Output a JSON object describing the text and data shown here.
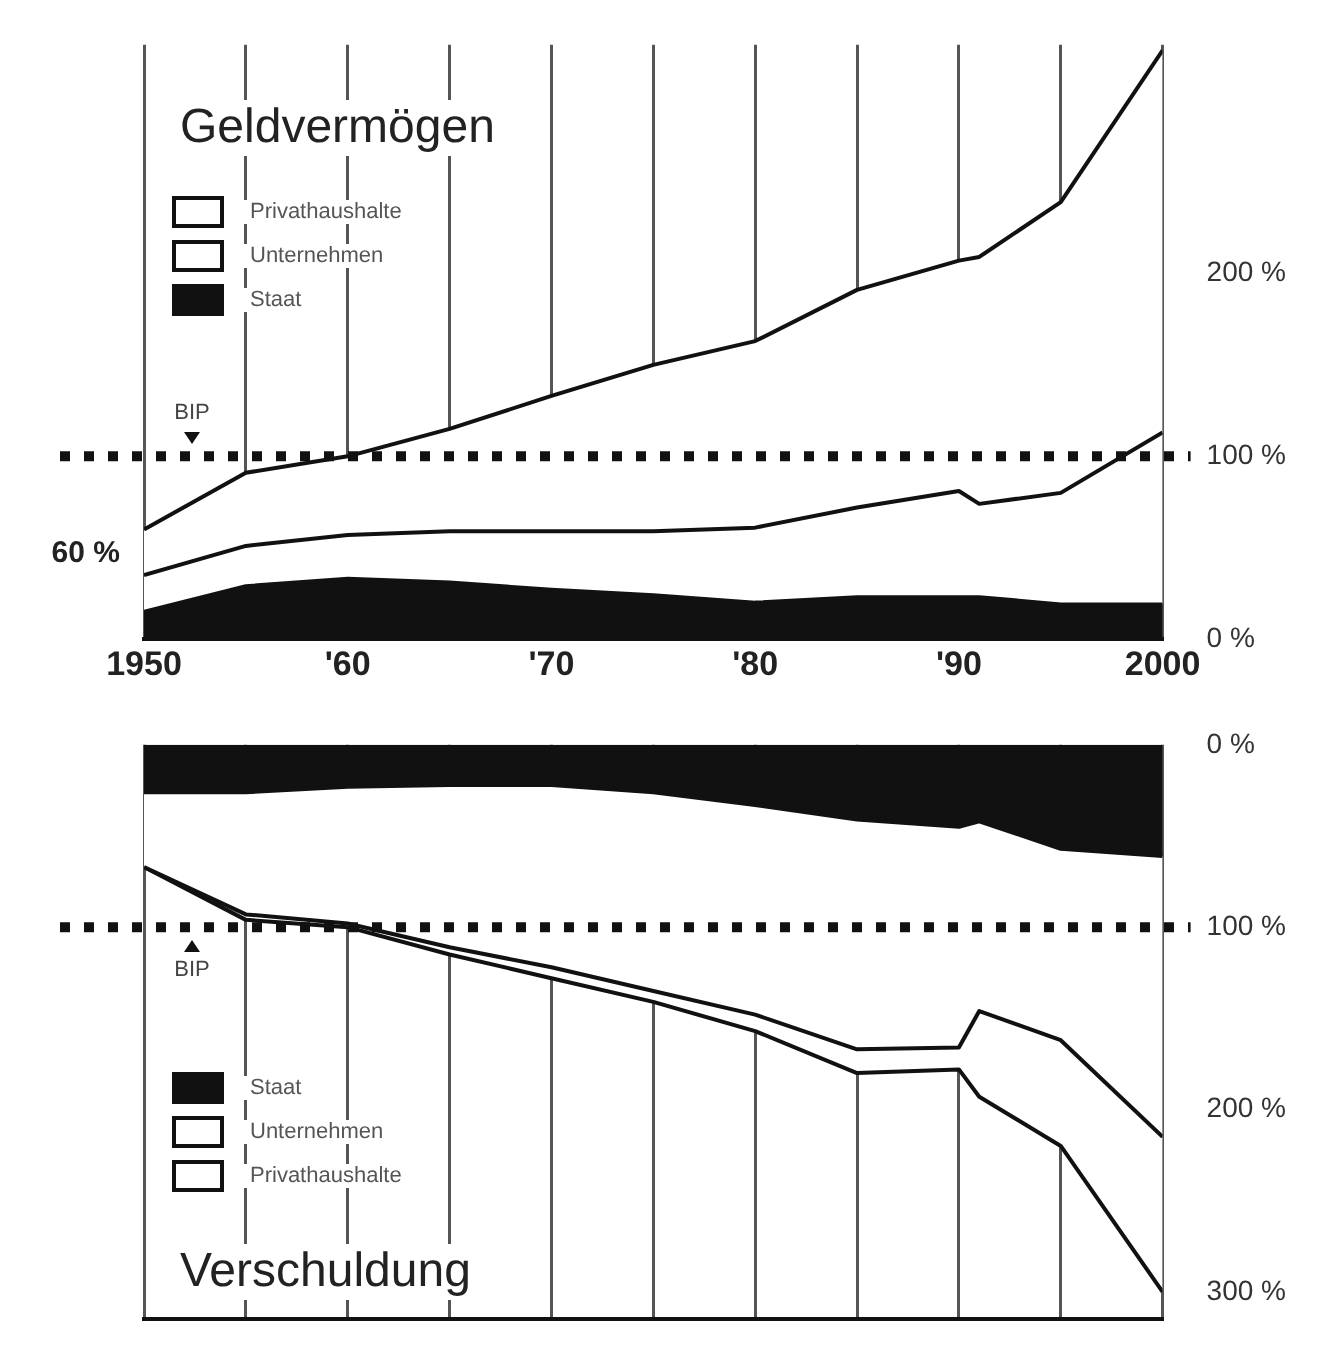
{
  "chart_data": [
    {
      "type": "area",
      "title": "Geldvermögen",
      "stacked": true,
      "x": [
        1950,
        1955,
        1960,
        1965,
        1970,
        1975,
        1980,
        1985,
        1990,
        1991,
        1995,
        2000
      ],
      "series": [
        {
          "name": "Staat",
          "color": "#111111",
          "values": [
            15,
            29,
            33,
            31,
            27,
            24,
            20,
            23,
            23,
            23,
            19,
            19
          ]
        },
        {
          "name": "Unternehmen",
          "color": "#ffffff",
          "values": [
            20,
            22,
            24,
            28,
            32,
            35,
            41,
            49,
            58,
            51,
            61,
            94
          ]
        },
        {
          "name": "Privathaushalte",
          "color": "#ffffff",
          "values": [
            25,
            40,
            43,
            56,
            74,
            91,
            102,
            119,
            126,
            135,
            159,
            209
          ]
        }
      ],
      "xlim": [
        1950,
        2000
      ],
      "xticks": [
        1950,
        {
          "value": 1955,
          "label": null
        },
        {
          "value": 1960,
          "label": "'60"
        },
        {
          "value": 1965,
          "label": null
        },
        {
          "value": 1970,
          "label": "'70"
        },
        {
          "value": 1975,
          "label": null
        },
        {
          "value": 1980,
          "label": "'80"
        },
        {
          "value": 1985,
          "label": null
        },
        {
          "value": 1990,
          "label": "'90"
        },
        {
          "value": 1995,
          "label": null
        },
        2000
      ],
      "ylim": [
        0,
        325
      ],
      "yticks": [
        {
          "value": 0,
          "label": "0 %"
        },
        {
          "value": 100,
          "label": "100 %"
        },
        {
          "value": 200,
          "label": "200 %"
        }
      ],
      "grid": "x",
      "legend": "top left",
      "marker": "none",
      "ref_lines": [
        {
          "axis": "y",
          "value": 100,
          "label": "BIP",
          "line_style": "dotted",
          "color": "#111111"
        }
      ],
      "annotations": [
        {
          "text": "60 %",
          "x": 1950,
          "y": 60
        }
      ]
    },
    {
      "type": "area",
      "title": "Verschuldung",
      "stacked": true,
      "x": [
        1950,
        1955,
        1960,
        1965,
        1970,
        1975,
        1980,
        1985,
        1990,
        1991,
        1995,
        2000
      ],
      "series": [
        {
          "name": "Staat",
          "color": "#111111",
          "values": [
            26,
            26,
            23,
            22,
            22,
            26,
            33,
            41,
            45,
            42,
            57,
            61
          ]
        },
        {
          "name": "Unternehmen",
          "color": "#ffffff",
          "values": [
            41,
            67,
            75,
            89,
            100,
            109,
            115,
            126,
            121,
            104,
            105,
            154
          ]
        },
        {
          "name": "Privathaushalte",
          "color": "#ffffff",
          "values": [
            0,
            3,
            2,
            4,
            6,
            6,
            9,
            13,
            12,
            47,
            58,
            85
          ]
        }
      ],
      "xlim": [
        1950,
        2000
      ],
      "xticks": [
        1950,
        1955,
        1960,
        1965,
        1970,
        1975,
        1980,
        1985,
        1990,
        1995,
        2000
      ],
      "ylim": [
        315,
        0
      ],
      "yticks": [
        {
          "value": 0,
          "label": "0 %"
        },
        {
          "value": 100,
          "label": "100 %"
        },
        {
          "value": 200,
          "label": "200 %"
        },
        {
          "value": 300,
          "label": "300 %"
        }
      ],
      "grid": "x",
      "legend": "bottom left",
      "marker": "none",
      "tick_labels": "y",
      "ref_lines": [
        {
          "axis": "y",
          "value": 100,
          "label": "BIP",
          "line_style": "dotted",
          "color": "#111111"
        }
      ]
    }
  ]
}
